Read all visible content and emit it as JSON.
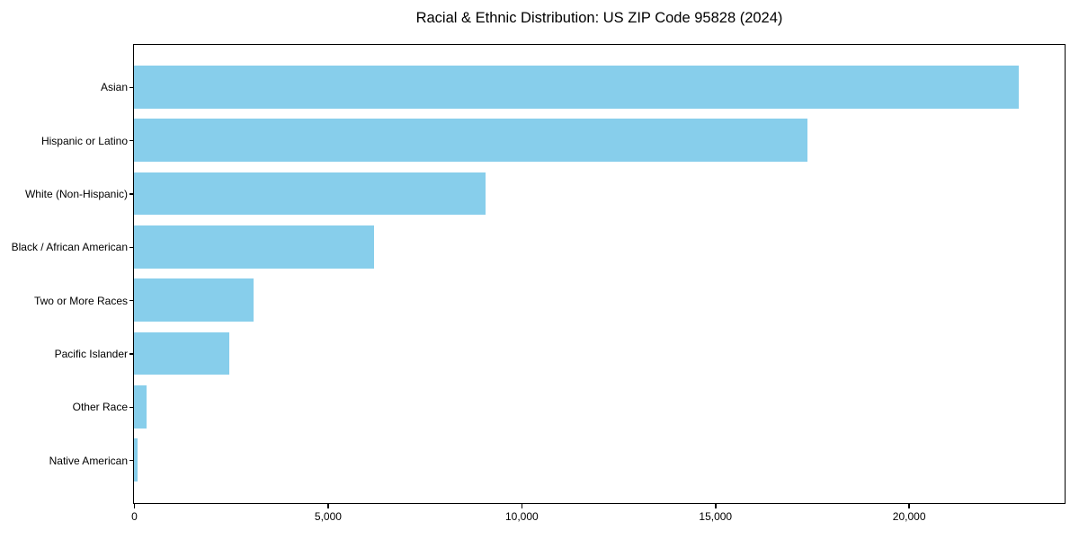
{
  "chart_data": {
    "type": "bar",
    "orientation": "horizontal",
    "title": "Racial & Ethnic Distribution: US ZIP Code 95828 (2024)",
    "categories": [
      "Asian",
      "Hispanic or Latino",
      "White (Non-Hispanic)",
      "Black / African American",
      "Two or More Races",
      "Pacific Islander",
      "Other Race",
      "Native American"
    ],
    "values": [
      22850,
      17380,
      9070,
      6200,
      3080,
      2450,
      320,
      95
    ],
    "xlabel": "",
    "ylabel": "",
    "xlim": [
      0,
      24000
    ],
    "xticks": [
      0,
      5000,
      10000,
      15000,
      20000
    ],
    "xtick_labels": [
      "0",
      "5,000",
      "10,000",
      "15,000",
      "20,000"
    ],
    "bar_color": "#87CEEB",
    "axis_color": "#000000",
    "grid": false,
    "legend": "none"
  }
}
